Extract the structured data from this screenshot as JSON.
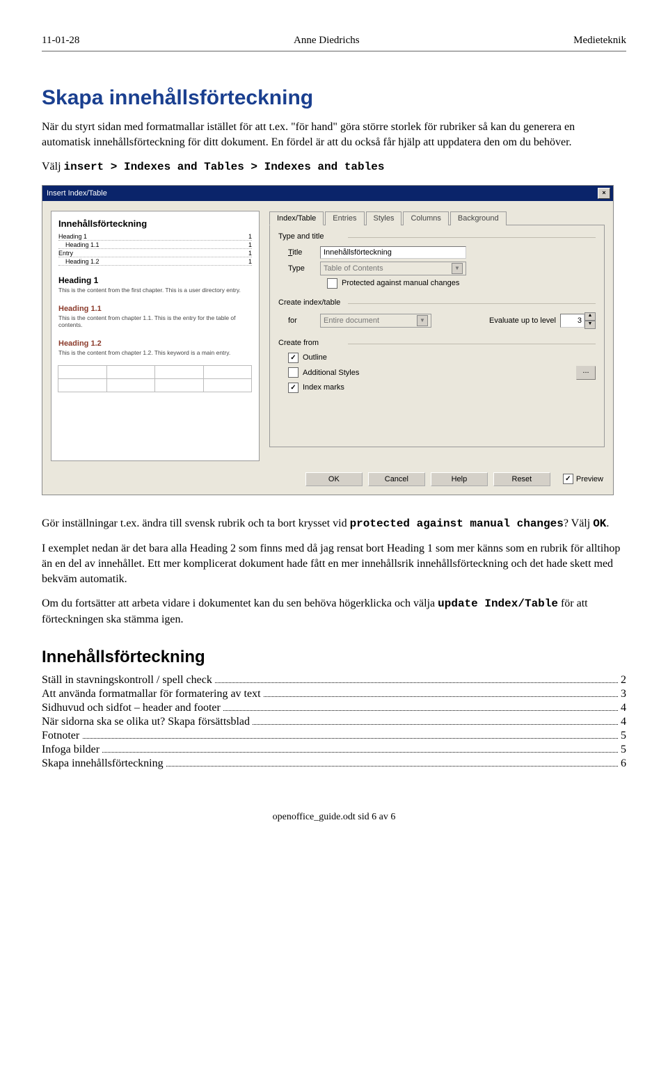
{
  "header": {
    "left": "11-01-28",
    "center": "Anne Diedrichs",
    "right": "Medieteknik"
  },
  "title": "Skapa innehållsförteckning",
  "para1_pre": "När du styrt sidan med formatmallar istället för att t.ex. \"för hand\" göra större storlek för rubriker så kan du generera en automatisk innehållsförteckning för ditt dokument. En fördel är att du också får hjälp att uppdatera den om du behöver.",
  "para2_pre": "Välj ",
  "para2_code": "insert > Indexes and Tables > Indexes and tables",
  "dialog": {
    "title": "Insert Index/Table",
    "tabs": [
      "Index/Table",
      "Entries",
      "Styles",
      "Columns",
      "Background"
    ],
    "active_tab": 0,
    "grp_type_title": "Type and title",
    "lbl_title": "Title",
    "val_title": "Innehållsförteckning",
    "lbl_type": "Type",
    "val_type": "Table of Contents",
    "cb_protected_label": "Protected against manual changes",
    "cb_protected_checked": false,
    "grp_create_title": "Create index/table",
    "lbl_for": "for",
    "val_for": "Entire document",
    "lbl_eval": "Evaluate up to level",
    "val_eval": "3",
    "grp_from_title": "Create from",
    "cb_outline_label": "Outline",
    "cb_outline_checked": true,
    "cb_addstyles_label": "Additional Styles",
    "cb_addstyles_checked": false,
    "cb_indexmarks_label": "Index marks",
    "cb_indexmarks_checked": true,
    "buttons": {
      "ok": "OK",
      "cancel": "Cancel",
      "help": "Help",
      "reset": "Reset"
    },
    "cb_preview_label": "Preview",
    "cb_preview_checked": true,
    "preview": {
      "title": "Innehållsförteckning",
      "rows": [
        {
          "label": "Heading 1",
          "page": "1",
          "indent": 0
        },
        {
          "label": "Heading 1.1",
          "page": "1",
          "indent": 1
        },
        {
          "label": "Entry",
          "page": "1",
          "indent": 0
        },
        {
          "label": "Heading 1.2",
          "page": "1",
          "indent": 1
        }
      ],
      "h1": "Heading 1",
      "h1_cap": "This is the content from the first chapter. This is a user directory entry.",
      "h11": "Heading 1.1",
      "h11_cap": "This is the content from chapter 1.1. This is the entry for the table of contents.",
      "h12": "Heading 1.2",
      "h12_cap": "This is the content from chapter 1.2. This keyword is a main entry."
    }
  },
  "para3_pre": "Gör inställningar t.ex. ändra till svensk rubrik och ta bort krysset vid ",
  "para3_code1": "protected against manual changes",
  "para3_mid": "? Välj ",
  "para3_code2": "OK",
  "para3_end": ".",
  "para4": "I exemplet nedan är det bara alla Heading 2 som finns med då jag rensat bort Heading 1 som mer känns som en rubrik för alltihop än en del av innehållet. Ett mer komplicerat dokument hade fått en mer innehållsrik innehållsförteckning och det hade skett med bekväm automatik.",
  "para5_pre": "Om du fortsätter att arbeta vidare i dokumentet kan du sen behöva högerklicka och välja ",
  "para5_code": "update Index/Table",
  "para5_end": "  för att förteckningen ska stämma igen.",
  "toc_title": "Innehållsförteckning",
  "toc": [
    {
      "label": "Ställ in stavningskontroll / spell check",
      "page": "2"
    },
    {
      "label": "Att använda formatmallar för formatering av text",
      "page": "3"
    },
    {
      "label": "Sidhuvud och sidfot – header and footer",
      "page": "4"
    },
    {
      "label": "När sidorna ska se olika ut? Skapa försättsblad",
      "page": "4"
    },
    {
      "label": "Fotnoter",
      "page": "5"
    },
    {
      "label": "Infoga bilder",
      "page": "5"
    },
    {
      "label": "Skapa innehållsförteckning",
      "page": "6"
    }
  ],
  "footer": "openoffice_guide.odt sid 6 av 6"
}
